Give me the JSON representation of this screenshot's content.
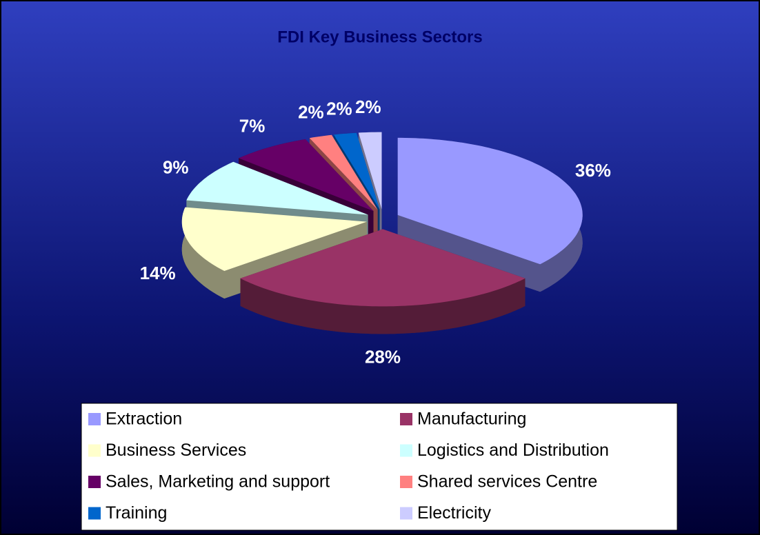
{
  "chart_data": {
    "type": "pie",
    "title": "FDI Key Business Sectors",
    "categories": [
      "Extraction",
      "Manufacturing",
      "Business Services",
      "Logistics and Distribution",
      "Sales, Marketing and support",
      "Shared services Centre",
      "Training",
      "Electricity"
    ],
    "values": [
      36,
      28,
      14,
      9,
      7,
      2,
      2,
      2
    ],
    "value_labels": [
      "36%",
      "28%",
      "14%",
      "9%",
      "7%",
      "2%",
      "2%",
      "2%"
    ],
    "colors": [
      "#9999ff",
      "#993366",
      "#ffffcc",
      "#ccffff",
      "#660066",
      "#ff8080",
      "#0066cc",
      "#ccccff"
    ],
    "legend": "bottom"
  }
}
